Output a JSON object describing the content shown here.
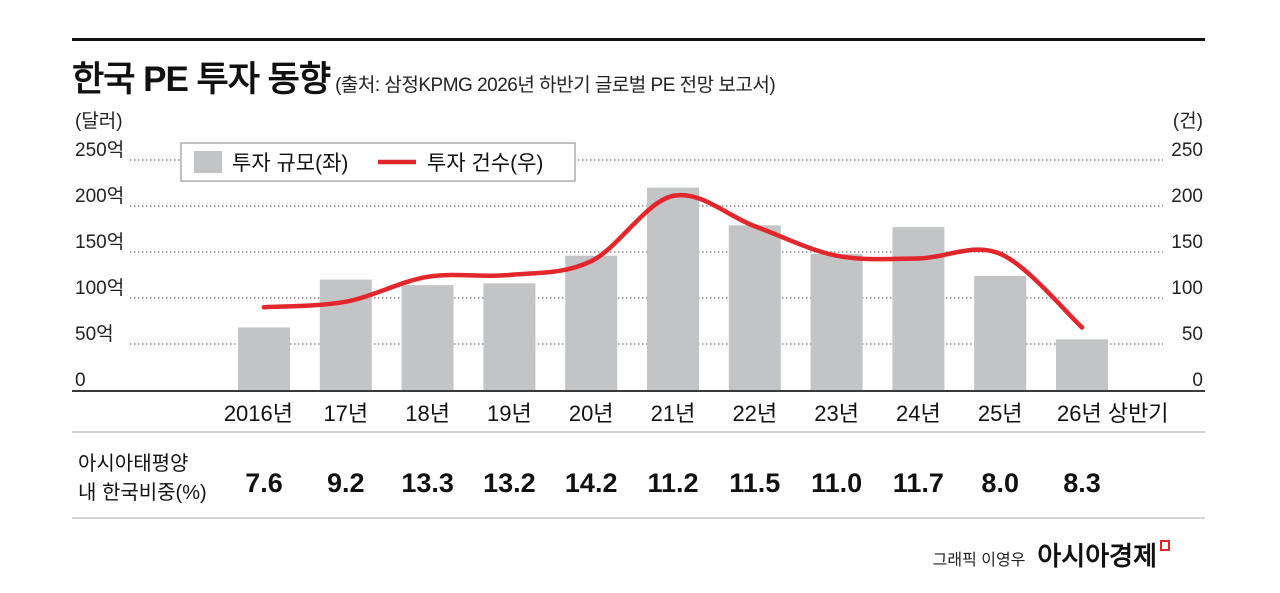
{
  "chart_data": {
    "type": "bar",
    "title": "한국 PE 투자 동향",
    "subtitle": "(출처: 삼정KPMG 2026년 하반기 글로벌 PE 전망 보고서)",
    "categories": [
      "2016년",
      "17년",
      "18년",
      "19년",
      "20년",
      "21년",
      "22년",
      "23년",
      "24년",
      "25년",
      "26년 상반기"
    ],
    "series": [
      {
        "name": "투자 규모(좌)",
        "type": "bar",
        "axis": "left",
        "color": "#c3c4c6",
        "values": [
          68,
          120,
          114,
          116,
          146,
          220,
          179,
          148,
          177,
          124,
          55
        ]
      },
      {
        "name": "투자 건수(우)",
        "type": "line",
        "axis": "right",
        "color": "#e3262b",
        "values": [
          90,
          96,
          123,
          125,
          140,
          211,
          178,
          146,
          143,
          148,
          68
        ]
      }
    ],
    "y_left": {
      "label": "(달러)",
      "ylim": [
        0,
        250
      ],
      "ticks": [
        "0",
        "50억",
        "100억",
        "150억",
        "200억",
        "250억"
      ]
    },
    "y_right": {
      "label": "(건)",
      "ylim": [
        0,
        250
      ],
      "ticks": [
        "0",
        "50",
        "100",
        "150",
        "200",
        "250"
      ]
    },
    "grid": true,
    "legend": "top-left"
  },
  "share_table": {
    "label_lines": [
      "아시아태평양",
      "내 한국비중(%)"
    ],
    "values": [
      "7.6",
      "9.2",
      "13.3",
      "13.2",
      "14.2",
      "11.2",
      "11.5",
      "11.0",
      "11.7",
      "8.0",
      "8.3"
    ]
  },
  "footer": {
    "credit": "그래픽 이영우",
    "brand": "아시아경제"
  },
  "colors": {
    "brand_mark": "#e3262b"
  }
}
